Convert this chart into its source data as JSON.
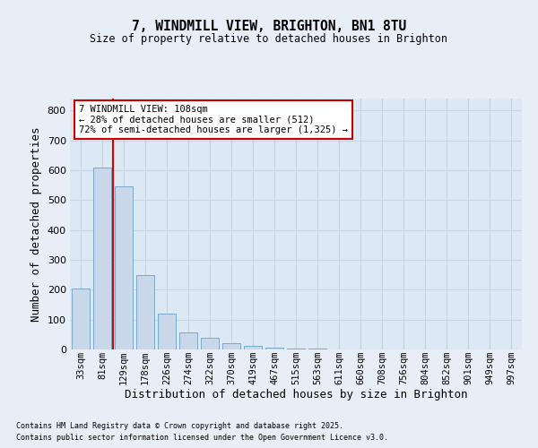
{
  "title1": "7, WINDMILL VIEW, BRIGHTON, BN1 8TU",
  "title2": "Size of property relative to detached houses in Brighton",
  "xlabel": "Distribution of detached houses by size in Brighton",
  "ylabel": "Number of detached properties",
  "categories": [
    "33sqm",
    "81sqm",
    "129sqm",
    "178sqm",
    "226sqm",
    "274sqm",
    "322sqm",
    "370sqm",
    "419sqm",
    "467sqm",
    "515sqm",
    "563sqm",
    "611sqm",
    "660sqm",
    "708sqm",
    "756sqm",
    "804sqm",
    "852sqm",
    "901sqm",
    "949sqm",
    "997sqm"
  ],
  "values": [
    203,
    608,
    545,
    248,
    120,
    58,
    38,
    20,
    13,
    5,
    3,
    2,
    1,
    0,
    1,
    0,
    0,
    0,
    0,
    0,
    1
  ],
  "bar_color": "#c8d8e8",
  "bar_edge_color": "#7aaac8",
  "grid_color": "#c8d4e4",
  "background_color": "#e8eef8",
  "plot_bg_color": "#dce8f4",
  "annotation_text": "7 WINDMILL VIEW: 108sqm\n← 28% of detached houses are smaller (512)\n72% of semi-detached houses are larger (1,325) →",
  "annotation_box_color": "#cc0000",
  "redline_x": 1.5,
  "ylim": [
    0,
    840
  ],
  "yticks": [
    0,
    100,
    200,
    300,
    400,
    500,
    600,
    700,
    800
  ],
  "footer1": "Contains HM Land Registry data © Crown copyright and database right 2025.",
  "footer2": "Contains public sector information licensed under the Open Government Licence v3.0."
}
